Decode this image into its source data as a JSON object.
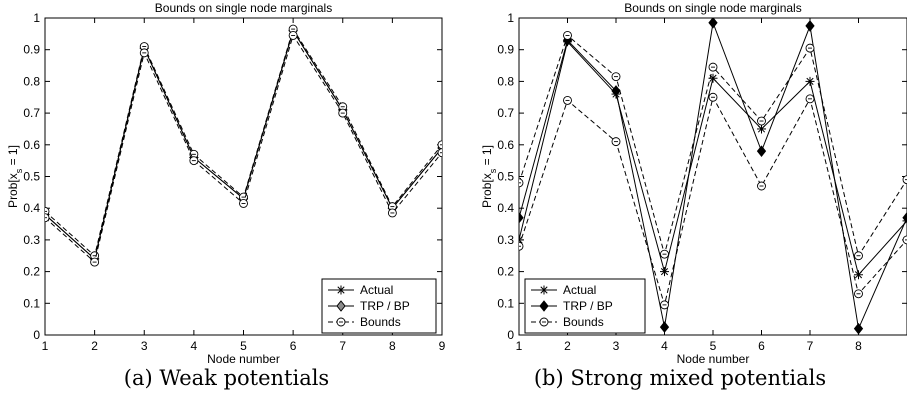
{
  "figure": {
    "captions": [
      "(a) Weak potentials",
      "(b) Strong mixed potentials"
    ]
  },
  "chart_data": [
    {
      "type": "line",
      "title": "Bounds on single node marginals",
      "xlabel": "Node number",
      "ylabel_main": "Prob[x",
      "ylabel_sub": "s",
      "ylabel_tail": " = 1]",
      "xlim": [
        1,
        9
      ],
      "ylim": [
        0,
        1
      ],
      "xticks": [
        1,
        2,
        3,
        4,
        5,
        6,
        7,
        8,
        9
      ],
      "yticks": [
        0,
        0.1,
        0.2,
        0.3,
        0.4,
        0.5,
        0.6,
        0.7,
        0.8,
        0.9,
        1
      ],
      "ytick_labels": [
        "0",
        "0.1",
        "0.2",
        "0.3",
        "0.4",
        "0.5",
        "0.6",
        "0.7",
        "0.8",
        "0.9",
        "1"
      ],
      "legend_position": "bottom-right",
      "grid": false,
      "series": [
        {
          "name": "Actual",
          "style": "solid",
          "marker": "star",
          "x": [
            1,
            2,
            3,
            4,
            5,
            6,
            7,
            8,
            9
          ],
          "values": [
            0.38,
            0.24,
            0.905,
            0.56,
            0.43,
            0.96,
            0.71,
            0.4,
            0.59
          ]
        },
        {
          "name": "TRP / BP",
          "style": "solid",
          "marker": "diamond-gray",
          "x": [
            1,
            2,
            3,
            4,
            5,
            6,
            7,
            8,
            9
          ],
          "values": [
            0.38,
            0.24,
            0.905,
            0.56,
            0.43,
            0.96,
            0.71,
            0.4,
            0.59
          ]
        },
        {
          "name": "Bounds",
          "style": "dashed",
          "marker": "circle-dot",
          "x": [
            1,
            2,
            3,
            4,
            5,
            6,
            7,
            8,
            9
          ],
          "values": [
            0.39,
            0.25,
            0.91,
            0.57,
            0.435,
            0.965,
            0.72,
            0.405,
            0.6
          ]
        },
        {
          "name": "",
          "style": "dashed",
          "marker": "circle-dot",
          "x": [
            1,
            2,
            3,
            4,
            5,
            6,
            7,
            8,
            9
          ],
          "values": [
            0.37,
            0.23,
            0.89,
            0.55,
            0.415,
            0.945,
            0.7,
            0.385,
            0.575
          ]
        }
      ]
    },
    {
      "type": "line",
      "title": "Bounds on single node marginals",
      "xlabel": "Node number",
      "ylabel_main": "Prob[x",
      "ylabel_sub": "s",
      "ylabel_tail": " = 1]",
      "xlim": [
        1,
        9
      ],
      "ylim": [
        0,
        1
      ],
      "xticks": [
        1,
        2,
        3,
        4,
        5,
        6,
        7,
        8
      ],
      "yticks": [
        0,
        0.1,
        0.2,
        0.3,
        0.4,
        0.5,
        0.6,
        0.7,
        0.8,
        0.9,
        1
      ],
      "ytick_labels": [
        "0",
        "0.1",
        "0.2",
        "0.3",
        "0.4",
        "0.5",
        "0.6",
        "0.7",
        "0.8",
        "0.9",
        "1"
      ],
      "legend_position": "bottom-left",
      "grid": false,
      "series": [
        {
          "name": "Actual",
          "style": "solid",
          "marker": "star",
          "x": [
            1,
            2,
            3,
            4,
            5,
            6,
            7,
            8,
            9
          ],
          "values": [
            0.3,
            0.925,
            0.76,
            0.2,
            0.81,
            0.65,
            0.8,
            0.19,
            0.36
          ]
        },
        {
          "name": "TRP / BP",
          "style": "solid",
          "marker": "diamond-black",
          "x": [
            1,
            2,
            3,
            4,
            5,
            6,
            7,
            8,
            9
          ],
          "values": [
            0.37,
            0.93,
            0.77,
            0.025,
            0.985,
            0.58,
            0.975,
            0.02,
            0.37
          ]
        },
        {
          "name": "Bounds",
          "style": "dashed",
          "marker": "circle-dot",
          "x": [
            1,
            2,
            3,
            4,
            5,
            6,
            7,
            8,
            9
          ],
          "values": [
            0.48,
            0.945,
            0.815,
            0.255,
            0.845,
            0.675,
            0.905,
            0.25,
            0.49
          ]
        },
        {
          "name": "",
          "style": "dashed",
          "marker": "circle-dot",
          "x": [
            1,
            2,
            3,
            4,
            5,
            6,
            7,
            8,
            9
          ],
          "values": [
            0.28,
            0.74,
            0.61,
            0.095,
            0.75,
            0.47,
            0.745,
            0.13,
            0.3
          ]
        }
      ]
    }
  ]
}
